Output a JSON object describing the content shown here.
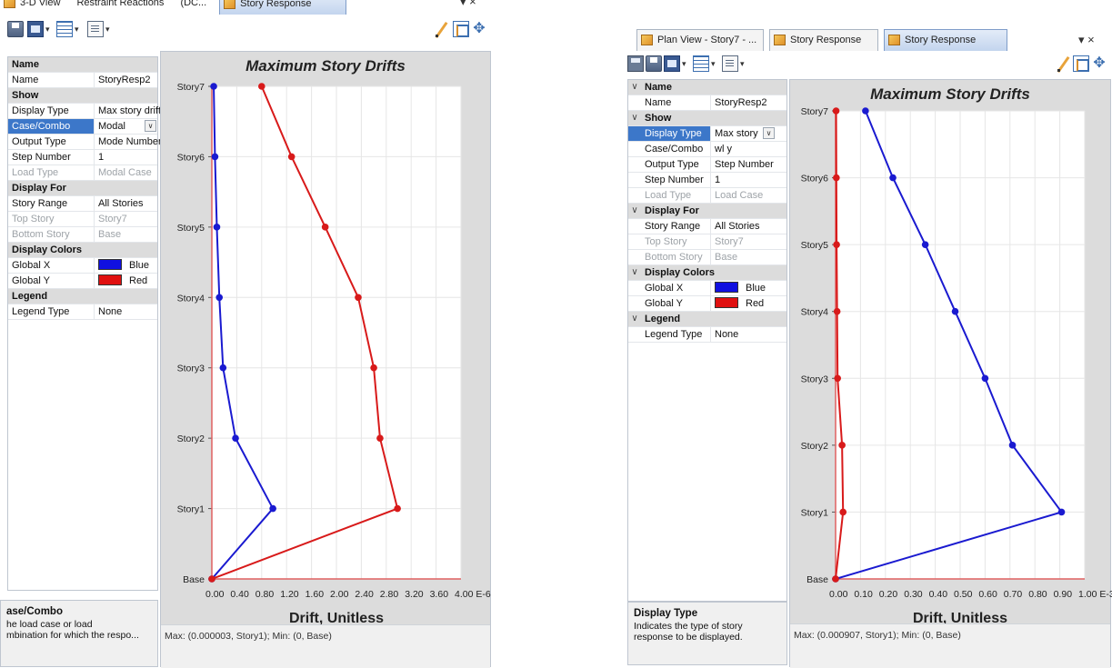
{
  "left": {
    "tabs": [
      "3-D View",
      "Restraint Reactions",
      "(DC...",
      "Story Response"
    ],
    "window_controls": "▾ ×",
    "grid": [
      {
        "type": "cat",
        "label": "Name"
      },
      {
        "type": "prop",
        "key": "Name",
        "value": "StoryResp2"
      },
      {
        "type": "cat",
        "label": "Show"
      },
      {
        "type": "prop",
        "key": "Display Type",
        "value": "Max story drift"
      },
      {
        "type": "prop",
        "key": "Case/Combo",
        "value": "Modal",
        "selected": true,
        "combo": true
      },
      {
        "type": "prop",
        "key": "Output Type",
        "value": "Mode Number"
      },
      {
        "type": "prop",
        "key": "Step Number",
        "value": "1"
      },
      {
        "type": "prop",
        "key": "Load Type",
        "value": "Modal Case",
        "disabled": true
      },
      {
        "type": "cat",
        "label": "Display For"
      },
      {
        "type": "prop",
        "key": "Story Range",
        "value": "All Stories"
      },
      {
        "type": "prop",
        "key": "Top Story",
        "value": "Story7",
        "disabled": true
      },
      {
        "type": "prop",
        "key": "Bottom Story",
        "value": "Base",
        "disabled": true
      },
      {
        "type": "cat",
        "label": "Display Colors"
      },
      {
        "type": "prop",
        "key": "Global X",
        "value": "Blue",
        "swatch": "#1010e0"
      },
      {
        "type": "prop",
        "key": "Global Y",
        "value": "Red",
        "swatch": "#e01010"
      },
      {
        "type": "cat",
        "label": "Legend"
      },
      {
        "type": "prop",
        "key": "Legend Type",
        "value": "None"
      }
    ],
    "desc_title": "ase/Combo",
    "desc_text": [
      "he load case or load",
      "mbination for which the respo..."
    ],
    "status": "Max: (0.000003, Story1);   Min: (0, Base)"
  },
  "right": {
    "tabs": [
      "Plan View - Story7 - ...",
      "Story Response",
      "Story Response"
    ],
    "window_controls": "▾ ×",
    "grid": [
      {
        "type": "cat",
        "label": "Name"
      },
      {
        "type": "prop",
        "key": "Name",
        "value": "StoryResp2"
      },
      {
        "type": "cat",
        "label": "Show"
      },
      {
        "type": "prop",
        "key": "Display Type",
        "value": "Max story",
        "selected": true,
        "combo": true
      },
      {
        "type": "prop",
        "key": "Case/Combo",
        "value": "wl y"
      },
      {
        "type": "prop",
        "key": "Output Type",
        "value": "Step Number"
      },
      {
        "type": "prop",
        "key": "Step Number",
        "value": "1"
      },
      {
        "type": "prop",
        "key": "Load Type",
        "value": "Load Case",
        "disabled": true
      },
      {
        "type": "cat",
        "label": "Display For"
      },
      {
        "type": "prop",
        "key": "Story Range",
        "value": "All Stories"
      },
      {
        "type": "prop",
        "key": "Top Story",
        "value": "Story7",
        "disabled": true
      },
      {
        "type": "prop",
        "key": "Bottom Story",
        "value": "Base",
        "disabled": true
      },
      {
        "type": "cat",
        "label": "Display Colors"
      },
      {
        "type": "prop",
        "key": "Global X",
        "value": "Blue",
        "swatch": "#1010e0"
      },
      {
        "type": "prop",
        "key": "Global Y",
        "value": "Red",
        "swatch": "#e01010"
      },
      {
        "type": "cat",
        "label": "Legend"
      },
      {
        "type": "prop",
        "key": "Legend Type",
        "value": "None"
      }
    ],
    "desc_title": "Display Type",
    "desc_text": [
      "Indicates the type of story",
      "response to be displayed."
    ],
    "status": "Max: (0.000907, Story1);   Min: (0, Base)"
  },
  "colors": {
    "global_x": "#1a1ad0",
    "global_y": "#d81a1a"
  },
  "chart_data": [
    {
      "type": "line",
      "title": "Maximum Story Drifts",
      "xlabel": "Drift, Unitless",
      "ylabel": "",
      "x_tick_labels": [
        "0.00",
        "0.40",
        "0.80",
        "1.20",
        "1.60",
        "2.00",
        "2.40",
        "2.80",
        "3.20",
        "3.60",
        "4.00 E-6"
      ],
      "xlim": [
        0,
        4.0
      ],
      "x_unit_multiplier": "E-6",
      "categories": [
        "Base",
        "Story1",
        "Story2",
        "Story3",
        "Story4",
        "Story5",
        "Story6",
        "Story7"
      ],
      "grid": true,
      "series": [
        {
          "name": "Global X",
          "color": "Blue",
          "values": [
            0,
            0.98,
            0.38,
            0.18,
            0.12,
            0.08,
            0.05,
            0.03
          ]
        },
        {
          "name": "Global Y",
          "color": "Red",
          "values": [
            0,
            2.98,
            2.7,
            2.6,
            2.35,
            1.82,
            1.28,
            0.8
          ]
        }
      ]
    },
    {
      "type": "line",
      "title": "Maximum Story Drifts",
      "xlabel": "Drift, Unitless",
      "ylabel": "",
      "x_tick_labels": [
        "0.00",
        "0.10",
        "0.20",
        "0.30",
        "0.40",
        "0.50",
        "0.60",
        "0.70",
        "0.80",
        "0.90",
        "1.00 E-3"
      ],
      "xlim": [
        0,
        1.0
      ],
      "x_unit_multiplier": "E-3",
      "categories": [
        "Base",
        "Story1",
        "Story2",
        "Story3",
        "Story4",
        "Story5",
        "Story6",
        "Story7"
      ],
      "grid": true,
      "series": [
        {
          "name": "Global X",
          "color": "Blue",
          "values": [
            0,
            0.907,
            0.71,
            0.6,
            0.48,
            0.36,
            0.23,
            0.12
          ]
        },
        {
          "name": "Global Y",
          "color": "Red",
          "values": [
            0,
            0.03,
            0.026,
            0.008,
            0.006,
            0.004,
            0.003,
            0.002
          ]
        }
      ]
    }
  ]
}
